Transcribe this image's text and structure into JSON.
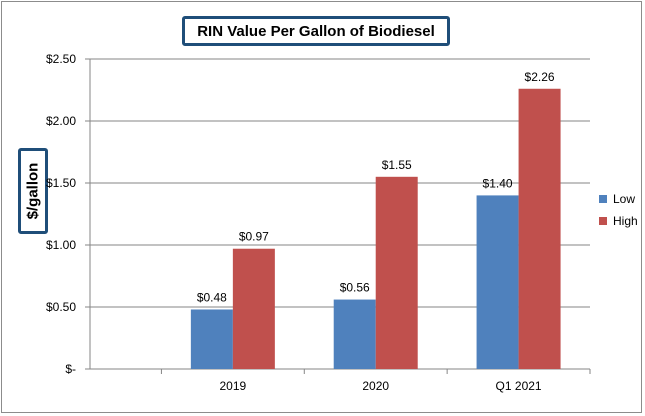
{
  "chart_data": {
    "type": "bar",
    "title": "RIN Value Per Gallon of Biodiesel",
    "ylabel": "$/gallon",
    "xlabel": "",
    "categories": [
      "2019",
      "2020",
      "Q1 2021"
    ],
    "series": [
      {
        "name": "Low",
        "color": "#4f81bd",
        "values": [
          0.48,
          0.56,
          1.4
        ],
        "labels": [
          "$0.48",
          "$0.56",
          "$1.40"
        ]
      },
      {
        "name": "High",
        "color": "#c0504d",
        "values": [
          0.97,
          1.55,
          2.26
        ],
        "labels": [
          "$0.97",
          "$1.55",
          "$2.26"
        ]
      }
    ],
    "ylim": [
      0,
      2.5
    ],
    "yticks": [
      0,
      0.5,
      1.0,
      1.5,
      2.0,
      2.5
    ],
    "ytick_labels": [
      "$-",
      "$0.50",
      "$1.00",
      "$1.50",
      "$2.00",
      "$2.50"
    ],
    "grid": true,
    "legend_position": "right"
  }
}
